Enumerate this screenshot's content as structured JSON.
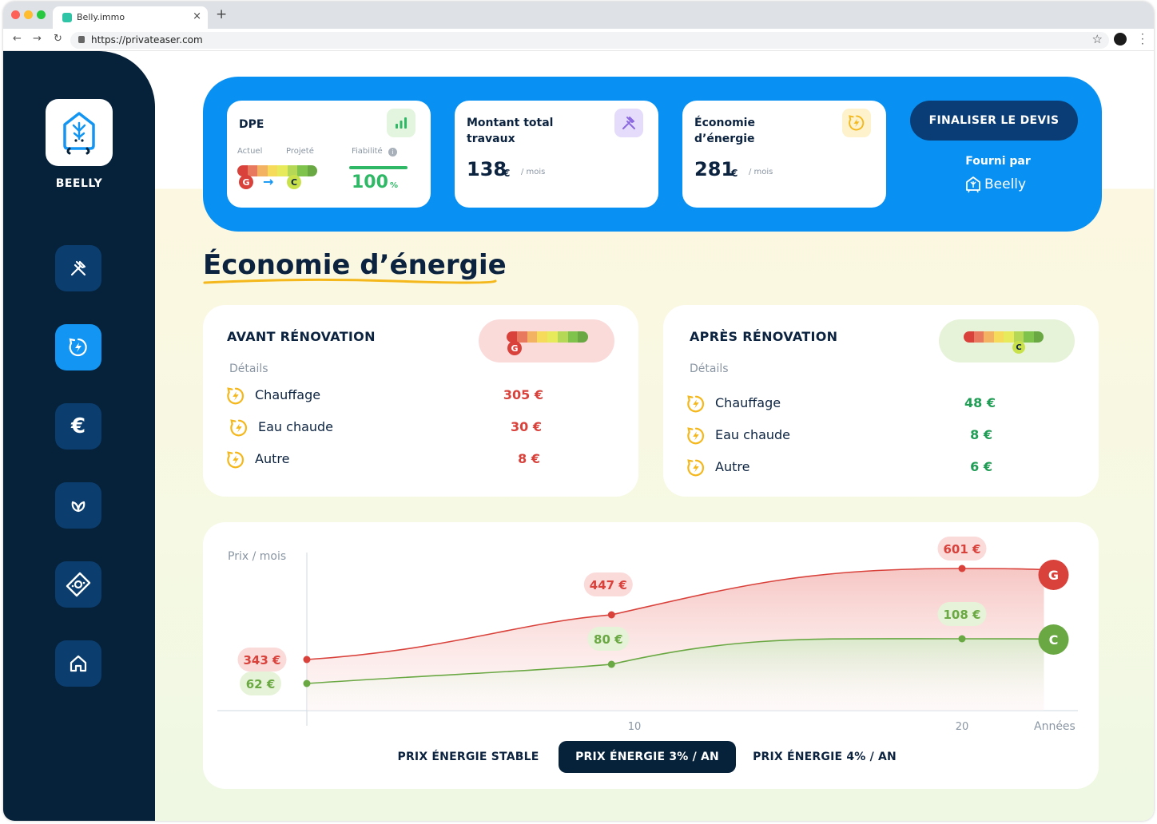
{
  "browser": {
    "tab_title": "Belly.immo",
    "tab_close": "×",
    "new_tab": "+",
    "url": "https://privateaser.com",
    "nav": {
      "back": "←",
      "forward": "→",
      "reload": "↻"
    },
    "star": "☆"
  },
  "sidebar": {
    "brand": "BEELLY",
    "items": [
      {
        "icon": "tools-icon",
        "active": false
      },
      {
        "icon": "energy-icon",
        "active": true
      },
      {
        "icon": "euro-icon",
        "active": false
      },
      {
        "icon": "leaf-icon",
        "active": false
      },
      {
        "icon": "money-icon",
        "active": false
      },
      {
        "icon": "home-icon",
        "active": false
      }
    ]
  },
  "summary": {
    "dpe": {
      "title": "DPE",
      "label_actuel": "Actuel",
      "label_projete": "Projeté",
      "label_fiabilite": "Fiabilité",
      "from": "G",
      "arrow": "→",
      "to": "C",
      "reliability_value": "100",
      "reliability_unit": "%",
      "reliability_fraction": 1.0
    },
    "travaux": {
      "title_line1": "Montant total",
      "title_line2": "travaux",
      "value": "138",
      "currency": "€",
      "period": "/ mois"
    },
    "economie": {
      "title_line1": "Économie",
      "title_line2": "d’énergie",
      "value": "281",
      "currency": "€",
      "period": "/ mois"
    },
    "cta": "FINALISER LE DEVIS",
    "provided_by": "Fourni par",
    "provider": "Beelly"
  },
  "section_title": "Économie d’énergie",
  "avant": {
    "title": "AVANT RÉNOVATION",
    "details_label": "Détails",
    "grade": "G",
    "rows": [
      {
        "label": "Chauffage",
        "value": "305 €"
      },
      {
        "label": "Eau chaude",
        "value": "30 €"
      },
      {
        "label": "Autre",
        "value": "8 €"
      }
    ]
  },
  "apres": {
    "title": "APRÈS RÉNOVATION",
    "details_label": "Détails",
    "grade": "C",
    "rows": [
      {
        "label": "Chauffage",
        "value": "48 €"
      },
      {
        "label": "Eau chaude",
        "value": "8 €"
      },
      {
        "label": "Autre",
        "value": "6 €"
      }
    ]
  },
  "colors": {
    "navy": "#06213a",
    "blue": "#0891f2",
    "red": "#d9413b",
    "green": "#6aa843",
    "green_text": "#1f9d55",
    "yellow": "#f4b81d",
    "dpe_scale": [
      "#d9413b",
      "#e9795e",
      "#f2b262",
      "#f6da5a",
      "#e7ea5b",
      "#b5d957",
      "#80c34c",
      "#6aa843"
    ]
  },
  "chart_data": {
    "type": "line",
    "ylabel": "Prix / mois",
    "xlabel": "Années",
    "x_ticks": [
      "10",
      "20"
    ],
    "xlim": [
      0,
      23
    ],
    "series": [
      {
        "name": "G",
        "color": "#d9413b",
        "labeled_points": [
          {
            "x": 0,
            "y": 343,
            "label": "343 €"
          },
          {
            "x": 9.3,
            "y": 447,
            "label": "447 €"
          },
          {
            "x": 20,
            "y": 601,
            "label": "601 €"
          }
        ],
        "end_x": 22.5
      },
      {
        "name": "C",
        "color": "#6aa843",
        "labeled_points": [
          {
            "x": 0,
            "y": 62,
            "label": "62 €"
          },
          {
            "x": 9.3,
            "y": 80,
            "label": "80 €"
          },
          {
            "x": 20,
            "y": 108,
            "label": "108 €"
          }
        ],
        "end_x": 22.5
      }
    ]
  },
  "chart_tabs": [
    {
      "label": "PRIX ÉNERGIE STABLE",
      "active": false
    },
    {
      "label": "PRIX ÉNERGIE 3% / AN",
      "active": true
    },
    {
      "label": "PRIX ÉNERGIE 4% / AN",
      "active": false
    }
  ]
}
